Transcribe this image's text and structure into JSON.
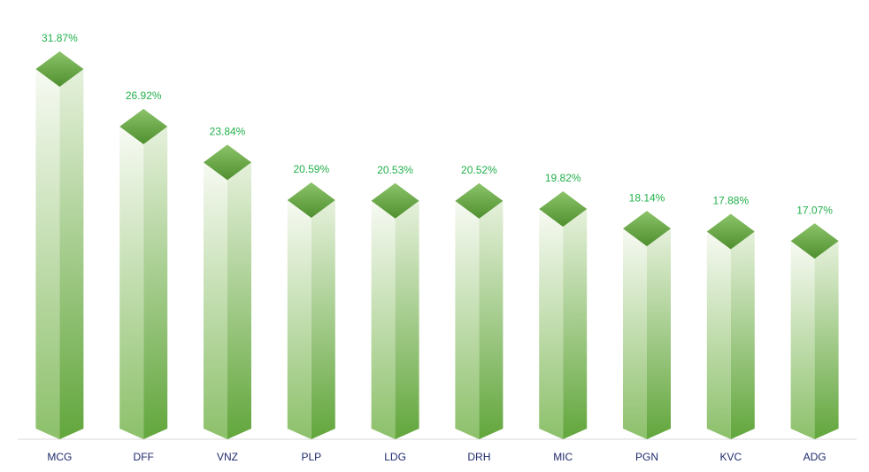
{
  "chart_data": {
    "type": "bar",
    "categories": [
      "MCG",
      "DFF",
      "VNZ",
      "PLP",
      "LDG",
      "DRH",
      "MIC",
      "PGN",
      "KVC",
      "ADG"
    ],
    "values": [
      31.87,
      26.92,
      23.84,
      20.59,
      20.53,
      20.52,
      19.82,
      18.14,
      17.88,
      17.07
    ],
    "value_labels": [
      "31.87%",
      "26.92%",
      "23.84%",
      "20.59%",
      "20.53%",
      "20.52%",
      "19.82%",
      "18.14%",
      "17.88%",
      "17.07%"
    ],
    "color": "#70ad47"
  }
}
